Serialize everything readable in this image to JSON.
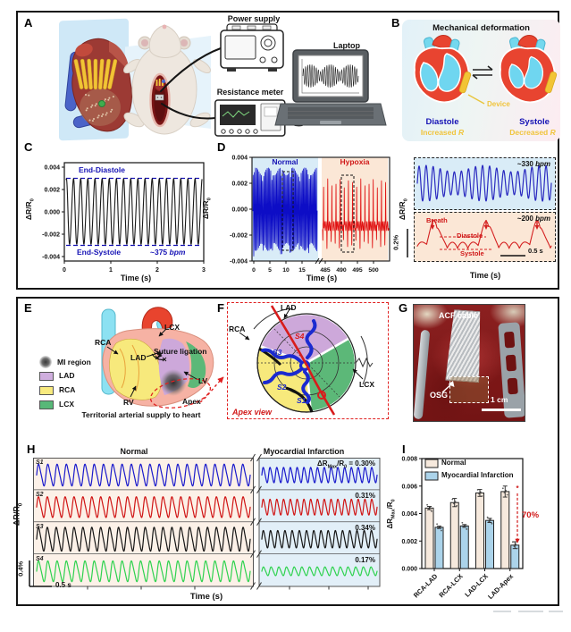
{
  "panel_a": {
    "label": "A",
    "power_supply": "Power supply",
    "resistance_meter": "Resistance meter",
    "laptop": "Laptop"
  },
  "panel_b": {
    "label": "B",
    "title": "Mechanical deformation",
    "device": "Device",
    "diastole": "Diastole",
    "diastole_effect": "Increased *R*",
    "systole": "Systole",
    "systole_effect": "Decreased *R*"
  },
  "panel_c": {
    "label": "C"
  },
  "panel_d": {
    "label": "D"
  },
  "panel_e": {
    "label": "E",
    "legend": [
      {
        "name": "MI region"
      },
      {
        "name": "LAD",
        "color": "#cfaede"
      },
      {
        "name": "RCA",
        "color": "#f8ea7e"
      },
      {
        "name": "LCX",
        "color": "#58b878"
      }
    ],
    "ann": {
      "rca": "RCA",
      "lcx": "LCX",
      "lad": "LAD",
      "suture": "Suture ligation",
      "lv": "LV",
      "rv": "RV",
      "apex": "Apex"
    },
    "caption": "Territorial arterial supply to heart"
  },
  "panel_f": {
    "label": "F",
    "lad": "LAD",
    "rca": "RCA",
    "lcx": "LCX",
    "s1": "S1",
    "s2": "S2",
    "s3": "S3",
    "s4": "S4",
    "apex_view": "Apex view"
  },
  "panel_g": {
    "label": "G",
    "acf_cable": "ACF cable",
    "osg": "OSG",
    "scale_bar": "1 cm"
  },
  "panel_h": {
    "label": "H"
  },
  "panel_i": {
    "label": "I"
  },
  "chart_data": [
    {
      "id": "panel_c",
      "type": "line",
      "ylabel": "ΔR/R_{0}",
      "xlabel": "Time (s)",
      "yticks": [
        "0.004",
        "0.002",
        "0.000",
        "-0.002",
        "-0.004"
      ],
      "xticks": [
        "0",
        "1",
        "2",
        "3"
      ],
      "ylim": [
        -0.0044,
        0.0044
      ],
      "xlim": [
        0,
        3
      ],
      "series": [
        {
          "name": "epicardial resistance signal",
          "color": "#181818",
          "cycles": 19,
          "amplitude": 0.0029,
          "baseline": 0
        }
      ],
      "reference_lines": [
        {
          "value": 0.003,
          "label": "End-Diastole",
          "color": "#1512b5"
        },
        {
          "value": -0.003,
          "label": "End-Systole",
          "color": "#1512b5"
        }
      ],
      "heart_rate_label": "~375 *bpm*"
    },
    {
      "id": "panel_d",
      "type": "line",
      "ylabel": "ΔR/R_{0}",
      "xlabel": "Time (s)",
      "yticks": [
        "0.004",
        "0.002",
        "0.000",
        "-0.002",
        "-0.004"
      ],
      "ylim": [
        -0.004,
        0.004
      ],
      "segments": [
        {
          "label": "Normal",
          "bg": "#d9ecf7",
          "wave_color": "#0d0dc6",
          "xticks": [
            "0",
            "5",
            "10",
            "15"
          ],
          "cycles": 55,
          "amplitude": 0.0029,
          "baseline": 0
        },
        {
          "label": "Hypoxia",
          "bg": "#fbe7d6",
          "wave_color": "#e01212",
          "xticks": [
            "485",
            "490",
            "495",
            "500"
          ],
          "spikes": 16,
          "amplitude": 0.0033,
          "baseline": -0.0013
        }
      ]
    },
    {
      "id": "panel_d_inset_top",
      "type": "line",
      "bg": "#d9ecf7",
      "wave_color": "#2a2ac0",
      "cycles": 19,
      "rate_label": "~330 *bpm*"
    },
    {
      "id": "panel_d_inset_bottom",
      "type": "line",
      "bg": "#fbe7d6",
      "wave_color": "#d42020",
      "scallops": 13,
      "breaths": 3,
      "rate_label": "~200 *bpm*",
      "labels": {
        "breath": "Breath",
        "diastole": "Diastole",
        "systole": "Systole",
        "time_scale": "0.5 s"
      },
      "amp_scale_label": "0.2%",
      "ylabel": "ΔR/R_{0}",
      "xlabel": "Time (s)"
    },
    {
      "id": "panel_h",
      "type": "line",
      "columns": [
        "Normal",
        "Myocardial Infarction"
      ],
      "col_bg": [
        "#fcf1e8",
        "#e2eff8"
      ],
      "ylabel": "ΔR/R_{0}",
      "amp_scale_label": "0.4%",
      "time_scale_label": "0.5 s",
      "xlabel": "Time (s)",
      "rows": [
        {
          "name": "S1",
          "color": "#1a1acc",
          "normal_cycles": 23,
          "normal_amp_pct": 0.42,
          "mi_cycles": 17,
          "mi_amp_pct": 0.3,
          "mi_label": "ΔR_{Max}/R_{0} = 0.30%"
        },
        {
          "name": "S2",
          "color": "#d01414",
          "normal_cycles": 24,
          "normal_amp_pct": 0.4,
          "mi_cycles": 17,
          "mi_amp_pct": 0.31,
          "mi_label": "0.31%"
        },
        {
          "name": "S3",
          "color": "#151515",
          "normal_cycles": 24,
          "normal_amp_pct": 0.46,
          "mi_cycles": 16,
          "mi_amp_pct": 0.34,
          "mi_label": "0.34%"
        },
        {
          "name": "S4",
          "color": "#2ed24e",
          "normal_cycles": 23,
          "normal_amp_pct": 0.4,
          "mi_cycles": 15,
          "mi_amp_pct": 0.17,
          "mi_label": "0.17%"
        }
      ]
    },
    {
      "id": "panel_i",
      "type": "bar",
      "ylabel": "ΔR_{Max}/R_{0}",
      "ylim": [
        0,
        0.008
      ],
      "yticks": [
        "0.008",
        "0.006",
        "0.004",
        "0.002",
        "0.000"
      ],
      "categories": [
        "RCA-LAD",
        "RCA-LCX",
        "LAD-LCX",
        "LAD-Apex"
      ],
      "series": [
        {
          "name": "Normal",
          "color": "#f6e9dd",
          "values": [
            0.0044,
            0.0048,
            0.0055,
            0.0056
          ],
          "errors": [
            0.00012,
            0.0003,
            0.00025,
            0.0004
          ]
        },
        {
          "name": "Myocardial Infarction",
          "color": "#abd3ea",
          "values": [
            0.003,
            0.0031,
            0.0035,
            0.0017
          ],
          "errors": [
            8e-05,
            0.0001,
            0.00015,
            0.00025
          ]
        }
      ],
      "annotation": {
        "text": "70%",
        "color": "#d01818"
      },
      "legend_position": "top-left",
      "grid": false
    }
  ]
}
